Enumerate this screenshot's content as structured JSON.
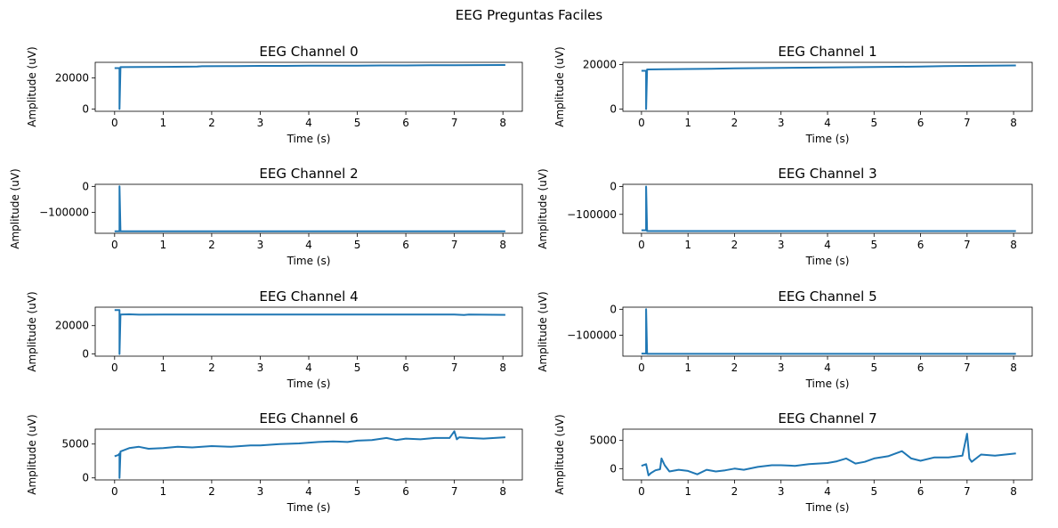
{
  "figure": {
    "suptitle": "EEG Preguntas Faciles",
    "line_color": "#1f77b4"
  },
  "chart_data": [
    {
      "type": "line",
      "title": "EEG Channel 0",
      "xlabel": "Time (s)",
      "ylabel": "Amplitude (uV)",
      "xlim": [
        -0.4,
        8.4
      ],
      "ylim": [
        -1500,
        30000
      ],
      "xticks": [
        0,
        1,
        2,
        3,
        4,
        5,
        6,
        7,
        8
      ],
      "yticks": [
        0,
        20000
      ],
      "ytick_labels": [
        "0",
        "20000"
      ],
      "series": [
        {
          "x": [
            0,
            0.08,
            0.1,
            0.1,
            0.12,
            0.5,
            1.0,
            1.5,
            1.7,
            1.8,
            2.5,
            3.0,
            3.5,
            4.0,
            4.5,
            5.0,
            5.5,
            6.0,
            6.5,
            7.0,
            7.5,
            8.05
          ],
          "y": [
            26300,
            26300,
            26300,
            0,
            26900,
            27000,
            27100,
            27200,
            27300,
            27500,
            27600,
            27700,
            27700,
            27800,
            27800,
            27900,
            28000,
            28000,
            28100,
            28100,
            28200,
            28300
          ]
        }
      ]
    },
    {
      "type": "line",
      "title": "EEG Channel 1",
      "xlabel": "Time (s)",
      "ylabel": "Amplitude (uV)",
      "xlim": [
        -0.4,
        8.4
      ],
      "ylim": [
        -1000,
        21000
      ],
      "xticks": [
        0,
        1,
        2,
        3,
        4,
        5,
        6,
        7,
        8
      ],
      "yticks": [
        0,
        20000
      ],
      "ytick_labels": [
        "0",
        "20000"
      ],
      "series": [
        {
          "x": [
            0,
            0.08,
            0.1,
            0.1,
            0.12,
            0.5,
            1.0,
            1.5,
            2.0,
            2.5,
            3.0,
            3.5,
            4.0,
            4.5,
            5.0,
            5.5,
            6.0,
            6.5,
            7.0,
            7.5,
            8.05
          ],
          "y": [
            17200,
            17200,
            17200,
            0,
            17800,
            17900,
            18000,
            18100,
            18300,
            18400,
            18500,
            18600,
            18700,
            18800,
            18900,
            19000,
            19100,
            19300,
            19400,
            19500,
            19600
          ]
        }
      ]
    },
    {
      "type": "line",
      "title": "EEG Channel 2",
      "xlabel": "Time (s)",
      "ylabel": "Amplitude (uV)",
      "xlim": [
        -0.4,
        8.4
      ],
      "ylim": [
        -180000,
        8000
      ],
      "xticks": [
        0,
        1,
        2,
        3,
        4,
        5,
        6,
        7,
        8
      ],
      "yticks": [
        0,
        -100000
      ],
      "ytick_labels": [
        "0",
        "−100000"
      ],
      "series": [
        {
          "x": [
            0,
            0.08,
            0.1,
            0.1,
            0.12,
            1,
            2,
            3,
            4,
            5,
            6,
            7,
            8.05
          ],
          "y": [
            -172000,
            -172000,
            -172000,
            0,
            -172000,
            -172000,
            -172000,
            -172000,
            -172000,
            -172000,
            -172000,
            -172000,
            -172000
          ]
        }
      ]
    },
    {
      "type": "line",
      "title": "EEG Channel 3",
      "xlabel": "Time (s)",
      "ylabel": "Amplitude (uV)",
      "xlim": [
        -0.4,
        8.4
      ],
      "ylim": [
        -168000,
        8000
      ],
      "xticks": [
        0,
        1,
        2,
        3,
        4,
        5,
        6,
        7,
        8
      ],
      "yticks": [
        0,
        -100000
      ],
      "ytick_labels": [
        "0",
        "−100000"
      ],
      "series": [
        {
          "x": [
            0,
            0.08,
            0.1,
            0.1,
            0.12,
            1,
            2,
            3,
            4,
            5,
            6,
            7,
            8.05
          ],
          "y": [
            -157000,
            -157000,
            -157000,
            0,
            -160000,
            -160000,
            -160000,
            -160000,
            -160000,
            -160000,
            -160000,
            -160000,
            -160000
          ]
        }
      ]
    },
    {
      "type": "line",
      "title": "EEG Channel 4",
      "xlabel": "Time (s)",
      "ylabel": "Amplitude (uV)",
      "xlim": [
        -0.4,
        8.4
      ],
      "ylim": [
        -1500,
        33000
      ],
      "xticks": [
        0,
        1,
        2,
        3,
        4,
        5,
        6,
        7,
        8
      ],
      "yticks": [
        0,
        20000
      ],
      "ytick_labels": [
        "0",
        "20000"
      ],
      "series": [
        {
          "x": [
            0,
            0.08,
            0.1,
            0.1,
            0.12,
            0.3,
            0.5,
            1,
            2,
            3,
            4,
            5,
            6,
            7,
            7.2,
            7.3,
            8.05
          ],
          "y": [
            31000,
            31000,
            31000,
            0,
            27800,
            28000,
            27700,
            27800,
            27800,
            27800,
            27800,
            27800,
            27800,
            27800,
            27500,
            27800,
            27600
          ]
        }
      ]
    },
    {
      "type": "line",
      "title": "EEG Channel 5",
      "xlabel": "Time (s)",
      "ylabel": "Amplitude (uV)",
      "xlim": [
        -0.4,
        8.4
      ],
      "ylim": [
        -180000,
        8000
      ],
      "xticks": [
        0,
        1,
        2,
        3,
        4,
        5,
        6,
        7,
        8
      ],
      "yticks": [
        0,
        -100000
      ],
      "ytick_labels": [
        "0",
        "−100000"
      ],
      "series": [
        {
          "x": [
            0,
            0.08,
            0.1,
            0.1,
            0.12,
            1,
            2,
            3,
            4,
            5,
            6,
            7,
            8.05
          ],
          "y": [
            -170000,
            -170000,
            -170000,
            0,
            -171000,
            -171000,
            -171000,
            -171000,
            -171000,
            -171000,
            -171000,
            -171000,
            -171000
          ]
        }
      ]
    },
    {
      "type": "line",
      "title": "EEG Channel 6",
      "xlabel": "Time (s)",
      "ylabel": "Amplitude (uV)",
      "xlim": [
        -0.4,
        8.4
      ],
      "ylim": [
        -300,
        7200
      ],
      "xticks": [
        0,
        1,
        2,
        3,
        4,
        5,
        6,
        7,
        8
      ],
      "yticks": [
        0,
        5000
      ],
      "ytick_labels": [
        "0",
        "5000"
      ],
      "series": [
        {
          "x": [
            0,
            0.08,
            0.1,
            0.1,
            0.12,
            0.3,
            0.5,
            0.7,
            1.0,
            1.3,
            1.6,
            2.0,
            2.4,
            2.8,
            3.0,
            3.4,
            3.8,
            4.2,
            4.5,
            4.8,
            5.0,
            5.3,
            5.6,
            5.8,
            6.0,
            6.3,
            6.6,
            6.9,
            7.0,
            7.05,
            7.1,
            7.3,
            7.6,
            8.05
          ],
          "y": [
            3200,
            3400,
            3600,
            0,
            3900,
            4400,
            4600,
            4300,
            4400,
            4600,
            4500,
            4700,
            4600,
            4800,
            4800,
            5000,
            5100,
            5300,
            5400,
            5300,
            5500,
            5600,
            5900,
            5600,
            5800,
            5700,
            5900,
            5900,
            6900,
            5700,
            6000,
            5900,
            5800,
            6000
          ]
        }
      ]
    },
    {
      "type": "line",
      "title": "EEG Channel 7",
      "xlabel": "Time (s)",
      "ylabel": "Amplitude (uV)",
      "xlim": [
        -0.4,
        8.4
      ],
      "ylim": [
        -2000,
        7000
      ],
      "xticks": [
        0,
        1,
        2,
        3,
        4,
        5,
        6,
        7,
        8
      ],
      "yticks": [
        0,
        5000
      ],
      "ytick_labels": [
        "0",
        "5000"
      ],
      "series": [
        {
          "x": [
            0,
            0.1,
            0.15,
            0.2,
            0.3,
            0.4,
            0.43,
            0.5,
            0.6,
            0.8,
            1.0,
            1.2,
            1.4,
            1.6,
            1.8,
            2.0,
            2.2,
            2.5,
            2.8,
            3.0,
            3.3,
            3.6,
            4.0,
            4.2,
            4.4,
            4.6,
            4.8,
            5.0,
            5.3,
            5.6,
            5.8,
            6.0,
            6.3,
            6.6,
            6.9,
            7.0,
            7.05,
            7.1,
            7.3,
            7.6,
            8.05
          ],
          "y": [
            500,
            800,
            -1200,
            -800,
            -300,
            -100,
            1800,
            600,
            -500,
            -200,
            -400,
            -1000,
            -200,
            -500,
            -300,
            0,
            -200,
            300,
            600,
            600,
            500,
            800,
            1000,
            1300,
            1800,
            900,
            1200,
            1800,
            2200,
            3100,
            1800,
            1400,
            2000,
            2000,
            2300,
            6200,
            1800,
            1200,
            2500,
            2300,
            2700
          ]
        }
      ]
    }
  ]
}
